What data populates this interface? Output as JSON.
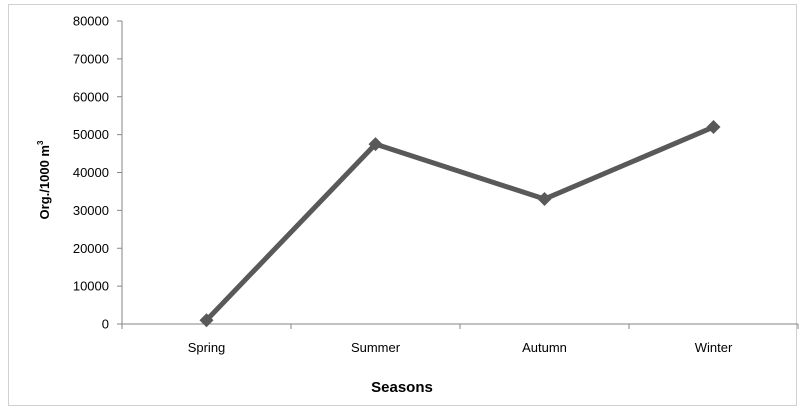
{
  "chart_data": {
    "type": "line",
    "categories": [
      "Spring",
      "Summer",
      "Autumn",
      "Winter"
    ],
    "series": [
      {
        "values": [
          1000,
          47500,
          33000,
          52000
        ],
        "color": "#595959",
        "marker": "diamond"
      }
    ],
    "xlabel": "Seasons",
    "ylabel": "Org./1000  m",
    "ylabel_superscript": "3",
    "ylim": [
      0,
      80000
    ],
    "yticks": [
      "0",
      "10000",
      "20000",
      "30000",
      "40000",
      "50000",
      "60000",
      "70000",
      "80000"
    ],
    "grid": false,
    "legend": "none"
  }
}
